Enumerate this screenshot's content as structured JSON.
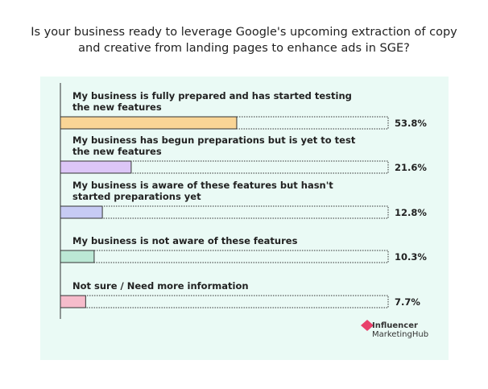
{
  "chart_data": {
    "type": "bar",
    "orientation": "horizontal",
    "title": "Is your business ready to leverage Google's upcoming extraction of copy and creative from landing pages to enhance ads in SGE?",
    "categories": [
      "My business is fully prepared and has started testing the new features",
      "My business has begun preparations but is yet to test the new features",
      "My business is aware of these features but hasn't started preparations yet",
      "My business is not aware of these features",
      "Not sure / Need more information"
    ],
    "values": [
      53.8,
      21.6,
      12.8,
      10.3,
      7.7
    ],
    "value_labels": [
      "53.8%",
      "21.6%",
      "12.8%",
      "10.3%",
      "7.7%"
    ],
    "colors": [
      "#f9d596",
      "#dcc6f7",
      "#c7cbf4",
      "#bce8d5",
      "#f6bccb"
    ],
    "xlim": [
      0,
      100
    ]
  },
  "logo": {
    "line1": "Influencer",
    "line2": "MarketingHub"
  }
}
